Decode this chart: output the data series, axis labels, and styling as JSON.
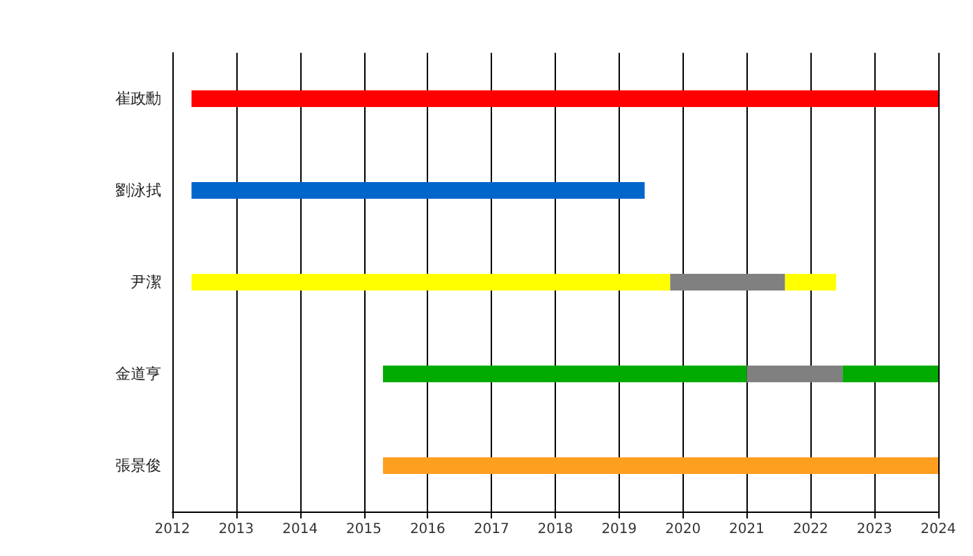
{
  "chart_data": {
    "type": "bar",
    "orientation": "horizontal",
    "categories": [
      "崔政勳",
      "劉泳拭",
      "尹潔",
      "金道亨",
      "張景俊"
    ],
    "series": [
      {
        "colors": [
          "#ff0000",
          "#0066cc",
          "#ffff00",
          "#00aa00",
          "#ff9f20"
        ],
        "base": [
          2012.3,
          2012.3,
          2012.3,
          2015.3,
          2015.3
        ],
        "values": [
          11.7,
          7.1,
          7.5,
          5.7,
          8.7
        ]
      },
      {
        "colors": [
          null,
          null,
          "#808080",
          "#808080",
          null
        ],
        "base": [
          null,
          null,
          2019.8,
          2021.0,
          null
        ],
        "values": [
          null,
          null,
          1.8,
          1.5,
          null
        ]
      },
      {
        "colors": [
          null,
          null,
          "#ffff00",
          "#00aa00",
          null
        ],
        "base": [
          null,
          null,
          2021.6,
          2022.5,
          null
        ],
        "values": [
          null,
          null,
          0.8,
          1.5,
          null
        ]
      }
    ],
    "xlim": [
      2012,
      2024
    ],
    "xticks": [
      2012,
      2013,
      2014,
      2015,
      2016,
      2017,
      2018,
      2019,
      2020,
      2021,
      2022,
      2023,
      2024
    ],
    "grid": "x"
  }
}
